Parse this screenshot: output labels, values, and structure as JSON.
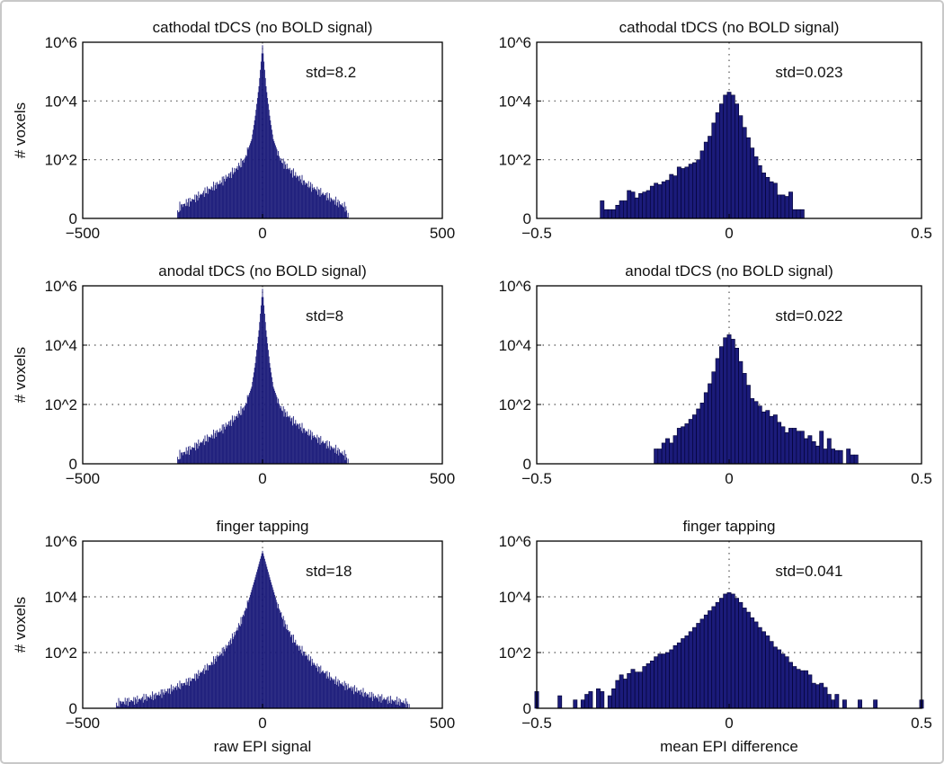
{
  "chart_data": [
    {
      "type": "bar",
      "title": "cathodal tDCS (no BOLD signal)",
      "annotation": "std=8.2",
      "ylabel": "# voxels",
      "xlabel": "",
      "xlim": [
        -500,
        500
      ],
      "xticks": [
        "-500",
        "0",
        "500"
      ],
      "yticks": [
        "0",
        "10^2",
        "10^4",
        "10^6"
      ],
      "yscale": "log10, 0 at 10^0",
      "ylim_log10": [
        0,
        6
      ],
      "grid": "dotted",
      "bin_width": 2,
      "envelope_log10": [
        [
          -240,
          0
        ],
        [
          -230,
          0.4
        ],
        [
          -200,
          0.6
        ],
        [
          -160,
          0.9
        ],
        [
          -120,
          1.2
        ],
        [
          -80,
          1.6
        ],
        [
          -50,
          2.0
        ],
        [
          -30,
          2.7
        ],
        [
          -20,
          3.5
        ],
        [
          -10,
          4.5
        ],
        [
          0,
          5.9
        ],
        [
          10,
          4.5
        ],
        [
          20,
          3.5
        ],
        [
          30,
          2.7
        ],
        [
          50,
          2.0
        ],
        [
          80,
          1.6
        ],
        [
          120,
          1.2
        ],
        [
          160,
          0.9
        ],
        [
          200,
          0.6
        ],
        [
          230,
          0.4
        ],
        [
          240,
          0
        ]
      ]
    },
    {
      "type": "bar",
      "title": "cathodal tDCS (no BOLD signal)",
      "annotation": "std=0.023",
      "ylabel": "",
      "xlabel": "",
      "xlim": [
        -0.5,
        0.5
      ],
      "xticks": [
        "-0.5",
        "0",
        "0.5"
      ],
      "yticks": [
        "0",
        "10^2",
        "10^4",
        "10^6"
      ],
      "yscale": "log10, 0 at 10^0",
      "ylim_log10": [
        0,
        6
      ],
      "grid": "dotted",
      "bin_start": -0.33,
      "bin_width": 0.01,
      "values_log10": [
        0.6,
        0.3,
        0.3,
        0.3,
        0.45,
        0.6,
        0.6,
        0.95,
        0.9,
        0.7,
        0.85,
        0.9,
        0.95,
        1.1,
        1.2,
        1.15,
        1.25,
        1.3,
        1.5,
        1.45,
        1.75,
        1.7,
        1.75,
        1.85,
        1.9,
        2.0,
        2.3,
        2.6,
        2.8,
        3.25,
        3.6,
        3.9,
        4.2,
        4.3,
        4.2,
        3.9,
        3.5,
        3.1,
        2.75,
        2.4,
        2.1,
        1.8,
        1.55,
        1.4,
        1.25,
        1.2,
        0.8,
        0.8,
        0.75,
        0.9,
        0.3,
        0.3,
        0.3
      ]
    },
    {
      "type": "bar",
      "title": "anodal tDCS (no BOLD signal)",
      "annotation": "std=8",
      "ylabel": "# voxels",
      "xlabel": "",
      "xlim": [
        -500,
        500
      ],
      "xticks": [
        "-500",
        "0",
        "500"
      ],
      "yticks": [
        "0",
        "10^2",
        "10^4",
        "10^6"
      ],
      "yscale": "log10, 0 at 10^0",
      "ylim_log10": [
        0,
        6
      ],
      "grid": "dotted",
      "bin_width": 2,
      "envelope_log10": [
        [
          -240,
          0
        ],
        [
          -230,
          0.3
        ],
        [
          -200,
          0.5
        ],
        [
          -160,
          0.8
        ],
        [
          -120,
          1.1
        ],
        [
          -80,
          1.5
        ],
        [
          -50,
          1.9
        ],
        [
          -30,
          2.6
        ],
        [
          -20,
          3.4
        ],
        [
          -10,
          4.5
        ],
        [
          0,
          5.9
        ],
        [
          10,
          4.5
        ],
        [
          20,
          3.4
        ],
        [
          30,
          2.6
        ],
        [
          50,
          1.9
        ],
        [
          80,
          1.5
        ],
        [
          120,
          1.1
        ],
        [
          160,
          0.8
        ],
        [
          200,
          0.5
        ],
        [
          230,
          0.3
        ],
        [
          240,
          0
        ]
      ]
    },
    {
      "type": "bar",
      "title": "anodal tDCS (no BOLD signal)",
      "annotation": "std=0.022",
      "ylabel": "",
      "xlabel": "",
      "xlim": [
        -0.5,
        0.5
      ],
      "xticks": [
        "-0.5",
        "0",
        "0.5"
      ],
      "yticks": [
        "0",
        "10^2",
        "10^4",
        "10^6"
      ],
      "yscale": "log10, 0 at 10^0",
      "ylim_log10": [
        0,
        6
      ],
      "grid": "dotted",
      "bin_start": -0.19,
      "bin_width": 0.01,
      "values_log10": [
        0.5,
        0.5,
        0.7,
        0.85,
        0.7,
        0.95,
        1.2,
        1.25,
        1.35,
        1.5,
        1.65,
        1.85,
        2.05,
        2.4,
        2.7,
        3.1,
        3.55,
        3.95,
        4.25,
        4.35,
        4.2,
        3.9,
        3.45,
        3.05,
        2.65,
        2.2,
        2.1,
        1.95,
        1.75,
        1.8,
        1.6,
        1.65,
        1.4,
        1.25,
        1.05,
        1.2,
        1.2,
        1.1,
        1.1,
        0.85,
        0.95,
        0.75,
        0.6,
        1.1,
        0.5,
        0.85,
        0.5,
        0.45,
        0.45,
        0,
        0.5,
        0.3,
        0.3
      ]
    },
    {
      "type": "bar",
      "title": "finger tapping",
      "annotation": "std=18",
      "ylabel": "# voxels",
      "xlabel": "raw EPI signal",
      "xlim": [
        -500,
        500
      ],
      "xticks": [
        "-500",
        "0",
        "500"
      ],
      "yticks": [
        "0",
        "10^2",
        "10^4",
        "10^6"
      ],
      "yscale": "log10, 0 at 10^0",
      "ylim_log10": [
        0,
        6
      ],
      "grid": "dotted",
      "bin_width": 2,
      "envelope_log10": [
        [
          -410,
          0
        ],
        [
          -400,
          0.2
        ],
        [
          -350,
          0.3
        ],
        [
          -300,
          0.45
        ],
        [
          -250,
          0.7
        ],
        [
          -200,
          1.0
        ],
        [
          -150,
          1.5
        ],
        [
          -100,
          2.2
        ],
        [
          -80,
          2.6
        ],
        [
          -60,
          3.1
        ],
        [
          -40,
          3.8
        ],
        [
          -20,
          4.7
        ],
        [
          0,
          5.65
        ],
        [
          20,
          4.7
        ],
        [
          40,
          3.8
        ],
        [
          60,
          3.1
        ],
        [
          80,
          2.6
        ],
        [
          100,
          2.2
        ],
        [
          150,
          1.5
        ],
        [
          200,
          1.0
        ],
        [
          250,
          0.7
        ],
        [
          300,
          0.45
        ],
        [
          350,
          0.3
        ],
        [
          400,
          0.2
        ],
        [
          410,
          0
        ]
      ]
    },
    {
      "type": "bar",
      "title": "finger tapping",
      "annotation": "std=0.041",
      "ylabel": "",
      "xlabel": "mean EPI difference",
      "xlim": [
        -0.5,
        0.5
      ],
      "xticks": [
        "-0.5",
        "0",
        "0.5"
      ],
      "yticks": [
        "0",
        "10^2",
        "10^4",
        "10^6"
      ],
      "yscale": "log10, 0 at 10^0",
      "ylim_log10": [
        0,
        6
      ],
      "grid": "dotted",
      "bin_start": -0.5,
      "bin_width": 0.01,
      "values_log10": [
        0.6,
        0,
        0,
        0,
        0,
        0,
        0.45,
        0,
        0,
        0,
        0.3,
        0,
        0.3,
        0.5,
        0.6,
        0,
        0.7,
        0.6,
        0,
        0.45,
        0.7,
        1.0,
        1.2,
        1.05,
        1.25,
        1.4,
        1.3,
        1.3,
        1.5,
        1.6,
        1.7,
        1.85,
        1.95,
        1.95,
        2.0,
        2.1,
        2.25,
        2.35,
        2.5,
        2.6,
        2.75,
        2.9,
        3.05,
        3.2,
        3.35,
        3.5,
        3.65,
        3.8,
        3.95,
        4.1,
        4.15,
        4.1,
        3.95,
        3.8,
        3.6,
        3.45,
        3.25,
        3.1,
        2.9,
        2.75,
        2.6,
        2.4,
        2.2,
        2.1,
        1.95,
        1.85,
        1.65,
        1.5,
        1.4,
        1.35,
        1.35,
        1.2,
        0.9,
        0.85,
        0.9,
        0.75,
        0.5,
        0.3,
        0.5,
        0,
        0.3,
        0,
        0,
        0,
        0.3,
        0,
        0,
        0,
        0.3,
        0,
        0,
        0,
        0,
        0,
        0,
        0,
        0,
        0,
        0,
        0,
        0.3
      ]
    }
  ],
  "colors": {
    "bar": "#1b1b7a",
    "axis": "#000000",
    "grid": "#555555"
  }
}
